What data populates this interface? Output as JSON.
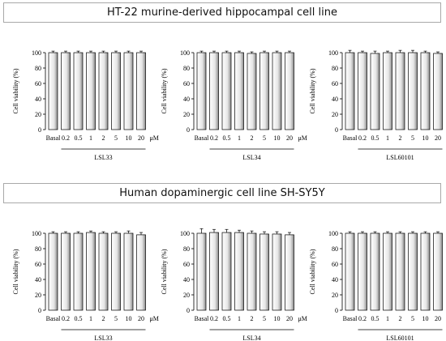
{
  "sections": [
    {
      "title": "HT-22 murine-derived hippocampal cell line"
    },
    {
      "title": "Human dopaminergic cell line SH-SY5Y"
    }
  ],
  "chart_data": [
    {
      "type": "bar",
      "ylabel": "Cell viability (%)",
      "ylim": [
        0,
        100
      ],
      "yticks": [
        0,
        20,
        40,
        60,
        80,
        100
      ],
      "categories": [
        "Basal",
        "0.2",
        "0.5",
        "1",
        "2",
        "5",
        "10",
        "20"
      ],
      "unit": "μM",
      "group_label": "LSL33",
      "values": [
        100,
        100,
        100,
        100,
        100,
        100,
        100,
        100
      ],
      "errors": [
        2,
        2,
        2,
        2,
        2,
        2,
        2,
        2
      ]
    },
    {
      "type": "bar",
      "ylabel": "Cell viability (%)",
      "ylim": [
        0,
        100
      ],
      "yticks": [
        0,
        20,
        40,
        60,
        80,
        100
      ],
      "categories": [
        "Basal",
        "0.2",
        "0.5",
        "1",
        "2",
        "5",
        "10",
        "20"
      ],
      "unit": "μM",
      "group_label": "LSL34",
      "values": [
        100,
        100,
        100,
        100,
        99,
        100,
        100,
        100
      ],
      "errors": [
        2,
        2,
        2,
        2,
        2,
        2,
        2,
        2
      ]
    },
    {
      "type": "bar",
      "ylabel": "Cell viability (%)",
      "ylim": [
        0,
        100
      ],
      "yticks": [
        0,
        20,
        40,
        60,
        80,
        100
      ],
      "categories": [
        "Basal",
        "0.2",
        "0.5",
        "1",
        "2",
        "5",
        "10",
        "20"
      ],
      "unit": "μM",
      "group_label": "LSL60101",
      "values": [
        100,
        100,
        99,
        100,
        100,
        100,
        100,
        99
      ],
      "errors": [
        3,
        2,
        3,
        2,
        3,
        3,
        2,
        2
      ]
    },
    {
      "type": "bar",
      "ylabel": "Cell viability (%)",
      "ylim": [
        0,
        100
      ],
      "yticks": [
        0,
        20,
        40,
        60,
        80,
        100
      ],
      "categories": [
        "Basal",
        "0.2",
        "0.5",
        "1",
        "2",
        "5",
        "10",
        "20"
      ],
      "unit": "μM",
      "group_label": "LSL33",
      "values": [
        100,
        100,
        100,
        101,
        100,
        100,
        100,
        98
      ],
      "errors": [
        2,
        2,
        2,
        2,
        2,
        2,
        3,
        3
      ]
    },
    {
      "type": "bar",
      "ylabel": "Cell viability (%)",
      "ylim": [
        0,
        100
      ],
      "yticks": [
        0,
        20,
        40,
        60,
        80,
        100
      ],
      "categories": [
        "Basal",
        "0.2",
        "0.5",
        "1",
        "2",
        "5",
        "10",
        "20"
      ],
      "unit": "μM",
      "group_label": "LSL34",
      "values": [
        100,
        101,
        101,
        101,
        100,
        99,
        99,
        98
      ],
      "errors": [
        6,
        4,
        4,
        3,
        3,
        3,
        3,
        3
      ]
    },
    {
      "type": "bar",
      "ylabel": "Cell viability (%)",
      "ylim": [
        0,
        100
      ],
      "yticks": [
        0,
        20,
        40,
        60,
        80,
        100
      ],
      "categories": [
        "Basal",
        "0.2",
        "0.5",
        "1",
        "2",
        "5",
        "10",
        "20"
      ],
      "unit": "μM",
      "group_label": "LSL60101",
      "values": [
        100,
        100,
        100,
        100,
        100,
        100,
        100,
        100
      ],
      "errors": [
        2,
        2,
        2,
        2,
        2,
        2,
        2,
        2
      ]
    }
  ]
}
